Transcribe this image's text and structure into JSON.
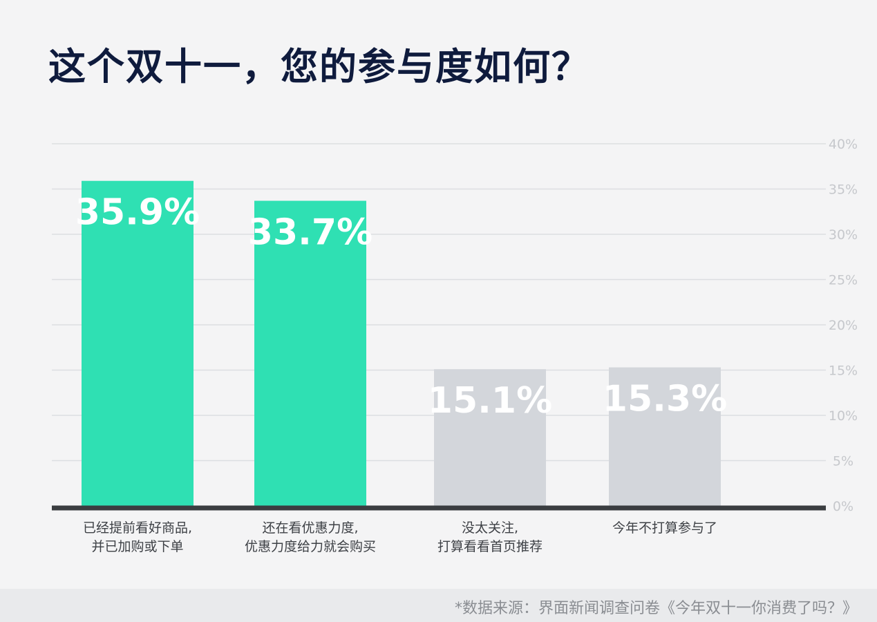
{
  "title": "这个双十一，您的参与度如何？",
  "source": "*数据来源：界面新闻调查问卷《今年双十一你消费了吗？》",
  "colors": {
    "highlight": "#2fe0b3",
    "muted": "#d3d6db",
    "baseline": "#3a3d40",
    "grid": "#dcdee1",
    "tick": "#c6c8cc",
    "title": "#0f1b3d"
  },
  "chart_data": {
    "type": "bar",
    "title": "这个双十一，您的参与度如何？",
    "xlabel": "",
    "ylabel": "",
    "ylim": [
      0,
      40
    ],
    "y_ticks": [
      "0%",
      "5%",
      "10%",
      "15%",
      "20%",
      "25%",
      "30%",
      "35%",
      "40%"
    ],
    "y_axis_side": "right",
    "grid": true,
    "categories": [
      [
        "已经提前看好商品,",
        "并已加购或下单"
      ],
      [
        "还在看优惠力度,",
        "优惠力度给力就会购买"
      ],
      [
        "没太关注,",
        "打算看看首页推荐"
      ],
      [
        "今年不打算参与了"
      ]
    ],
    "values": [
      35.9,
      33.7,
      15.1,
      15.3
    ],
    "value_labels": [
      "35.9%",
      "33.7%",
      "15.1%",
      "15.3%"
    ],
    "highlight": [
      true,
      true,
      false,
      false
    ]
  }
}
